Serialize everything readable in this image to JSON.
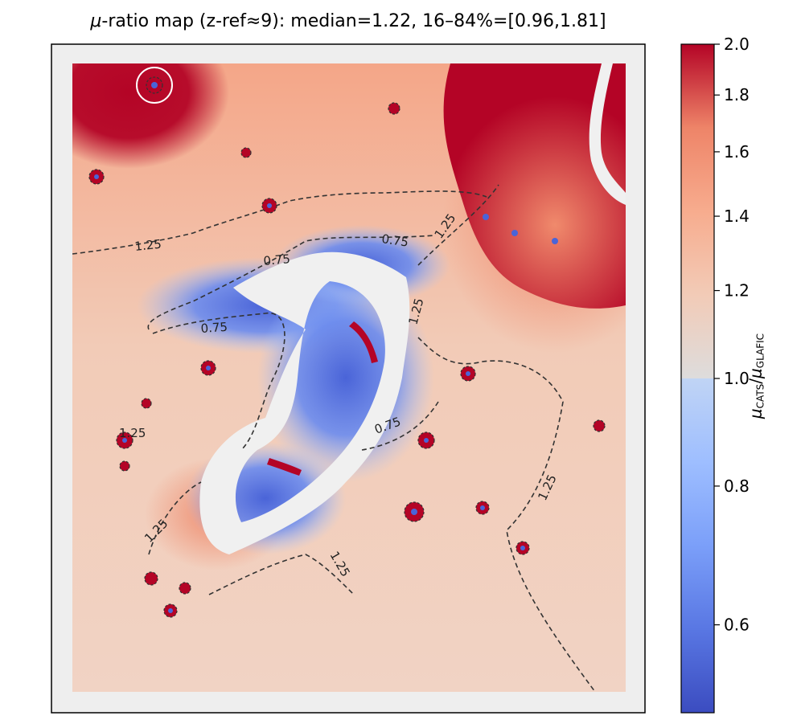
{
  "chart_data": {
    "type": "heatmap",
    "title_pre": "-ratio map (z-ref≈9): median=1.22, 16–84%=[0.96,1.81]",
    "title_mu": "μ",
    "colorbar": {
      "label_mu": "μ",
      "label_sub_num": "CATS",
      "label_slash": "/",
      "label_mu2": "μ",
      "label_sub_den": "GLAFIC",
      "scale": "log",
      "vmin": 0.5,
      "vmax": 2.0,
      "ticks": [
        0.6,
        0.8,
        1.0,
        1.2,
        1.4,
        1.6,
        1.8,
        2.0
      ],
      "tick_labels": [
        "0.6",
        "0.8",
        "1.0",
        "1.2",
        "1.4",
        "1.6",
        "1.8",
        "2.0"
      ],
      "colormap": "coolwarm",
      "colors": {
        "low": "#3b4cc0",
        "mid": "#dddddd",
        "high": "#b40426"
      }
    },
    "summary": {
      "median": 1.22,
      "p16": 0.96,
      "p84": 1.81,
      "z_ref": 9
    },
    "contours": {
      "levels": [
        0.75,
        1.25
      ],
      "style": "dashed",
      "color": "#333333"
    },
    "contour_labels": [
      {
        "text": "1.25",
        "level": 1.25
      },
      {
        "text": "0.75",
        "level": 0.75
      },
      {
        "text": "0.75",
        "level": 0.75
      },
      {
        "text": "1.25",
        "level": 1.25
      },
      {
        "text": "1.25",
        "level": 1.25
      },
      {
        "text": "0.75",
        "level": 0.75
      },
      {
        "text": "1.25",
        "level": 1.25
      },
      {
        "text": "0.75",
        "level": 0.75
      },
      {
        "text": "1.25",
        "level": 1.25
      },
      {
        "text": "1.25",
        "level": 1.25
      },
      {
        "text": "1.25",
        "level": 1.25
      }
    ],
    "axes": {
      "ticks_visible": false,
      "grid": false,
      "legend": "none",
      "masked_border_color": "#eeeeee"
    }
  }
}
